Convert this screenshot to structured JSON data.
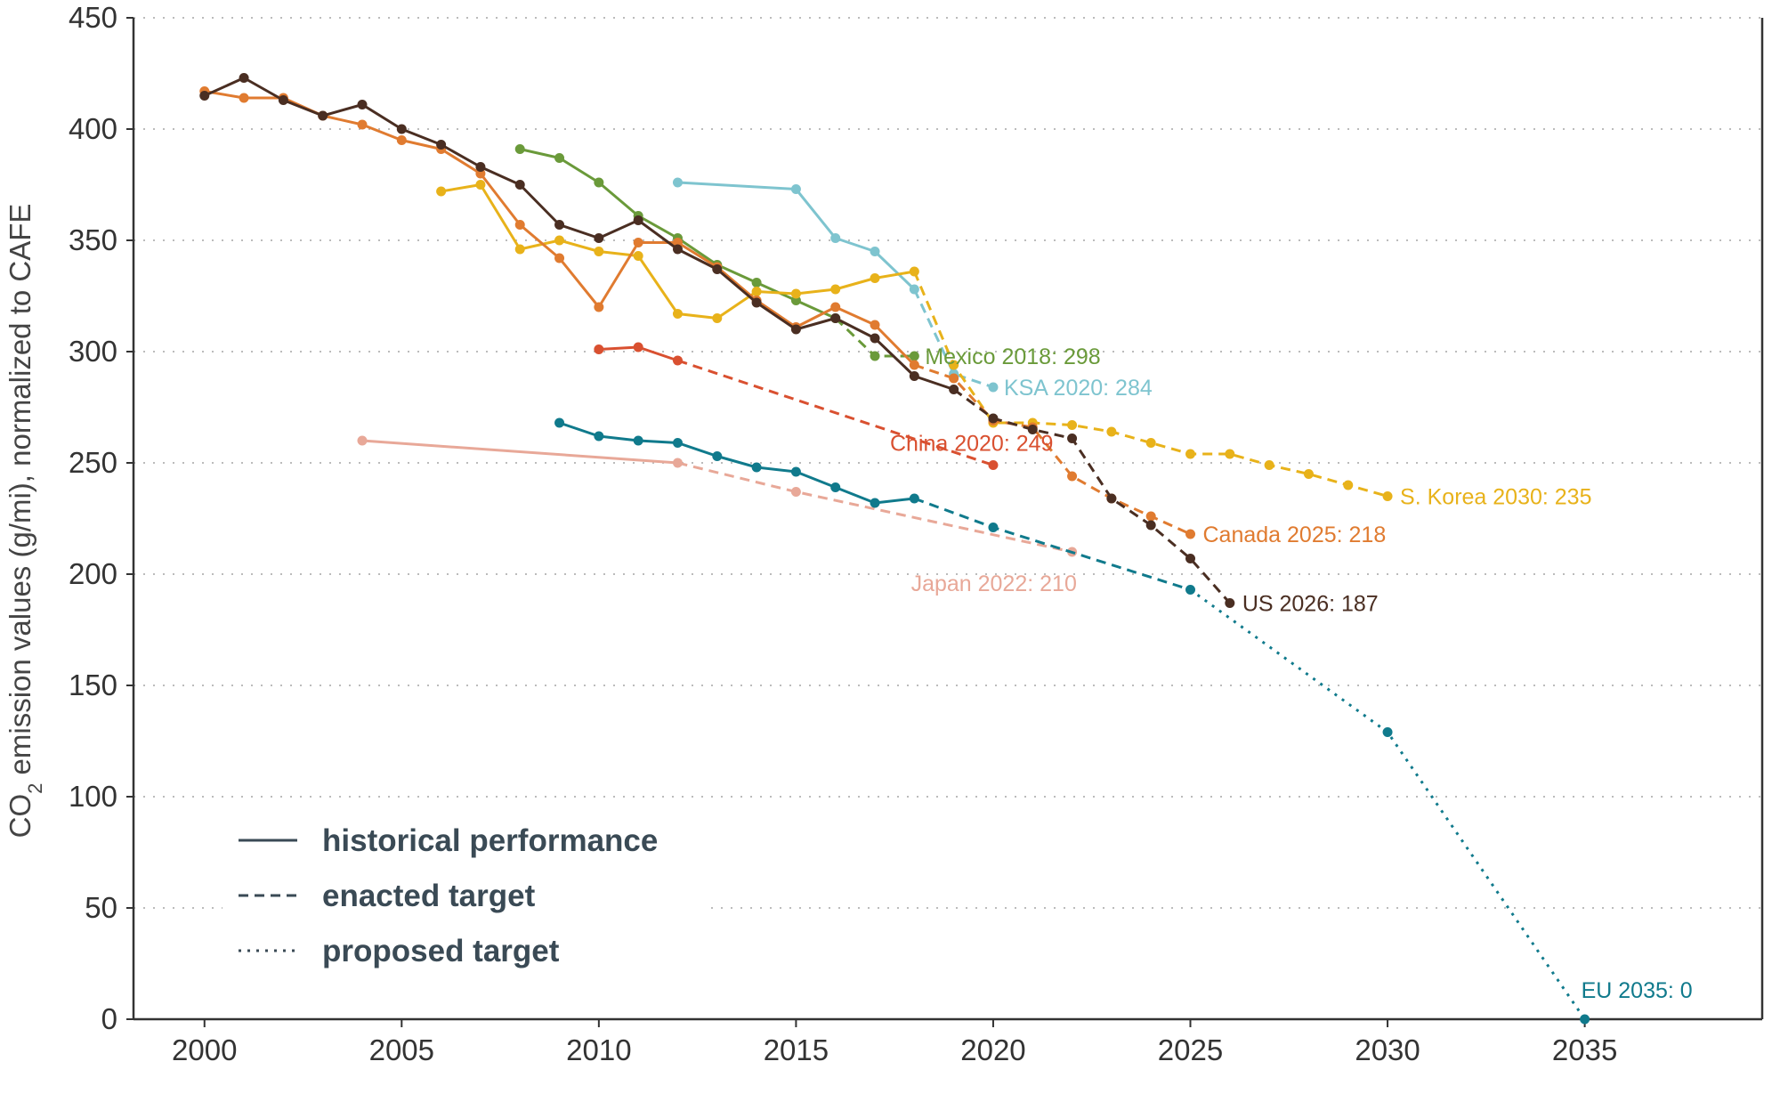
{
  "chart_data": {
    "type": "line",
    "ylabel_main": "CO",
    "ylabel_sub": "2",
    "ylabel_rest": " emission values (g/mi), normalized to CAFE",
    "xlim": [
      1998.2,
      2039.5
    ],
    "ylim": [
      0,
      450
    ],
    "x_ticks": [
      "2000",
      "2005",
      "2010",
      "2015",
      "2020",
      "2025",
      "2030",
      "2035"
    ],
    "y_ticks": [
      "0",
      "50",
      "100",
      "150",
      "200",
      "250",
      "300",
      "350",
      "400",
      "450"
    ],
    "grid": "horizontal dotted",
    "legend": {
      "placement": "bottom-left",
      "entries": [
        {
          "style": "solid",
          "label": "historical performance"
        },
        {
          "style": "dashed",
          "label": "enacted target"
        },
        {
          "style": "dotted",
          "label": "proposed target"
        }
      ]
    },
    "series": [
      {
        "name": "Mexico",
        "color": "#6a9a3a",
        "historical": [
          [
            2008,
            391
          ],
          [
            2009,
            387
          ],
          [
            2010,
            376
          ],
          [
            2011,
            361
          ],
          [
            2012,
            351
          ],
          [
            2013,
            339
          ],
          [
            2014,
            331
          ],
          [
            2015,
            323
          ],
          [
            2016,
            315
          ]
        ],
        "enacted": [
          [
            2016,
            315
          ],
          [
            2017,
            298
          ],
          [
            2018,
            298
          ]
        ],
        "proposed": [],
        "label": "Mexico 2018: 298"
      },
      {
        "name": "KSA",
        "color": "#7ec4cf",
        "historical": [
          [
            2012,
            376
          ],
          [
            2015,
            373
          ],
          [
            2016,
            351
          ],
          [
            2017,
            345
          ],
          [
            2018,
            328
          ]
        ],
        "enacted": [
          [
            2018,
            328
          ],
          [
            2019,
            290
          ],
          [
            2020,
            284
          ]
        ],
        "proposed": [],
        "label": "KSA 2020: 284"
      },
      {
        "name": "S. Korea",
        "color": "#e8b21a",
        "historical": [
          [
            2006,
            372
          ],
          [
            2007,
            375
          ],
          [
            2008,
            346
          ],
          [
            2009,
            350
          ],
          [
            2010,
            345
          ],
          [
            2011,
            343
          ],
          [
            2012,
            317
          ],
          [
            2013,
            315
          ],
          [
            2014,
            327
          ],
          [
            2015,
            326
          ],
          [
            2016,
            328
          ],
          [
            2017,
            333
          ],
          [
            2018,
            336
          ]
        ],
        "enacted": [
          [
            2018,
            336
          ],
          [
            2019,
            294
          ],
          [
            2020,
            268
          ],
          [
            2021,
            268
          ],
          [
            2022,
            267
          ],
          [
            2023,
            264
          ],
          [
            2024,
            259
          ],
          [
            2025,
            254
          ],
          [
            2026,
            254
          ],
          [
            2027,
            249
          ],
          [
            2028,
            245
          ],
          [
            2029,
            240
          ],
          [
            2030,
            235
          ]
        ],
        "proposed": [],
        "label": "S. Korea 2030: 235"
      },
      {
        "name": "Canada",
        "color": "#e07b30",
        "historical": [
          [
            2000,
            417
          ],
          [
            2001,
            414
          ],
          [
            2002,
            414
          ],
          [
            2003,
            406
          ],
          [
            2004,
            402
          ],
          [
            2005,
            395
          ],
          [
            2006,
            391
          ],
          [
            2007,
            380
          ],
          [
            2008,
            357
          ],
          [
            2009,
            342
          ],
          [
            2010,
            320
          ],
          [
            2011,
            349
          ],
          [
            2012,
            349
          ],
          [
            2013,
            338
          ],
          [
            2014,
            323
          ],
          [
            2015,
            311
          ],
          [
            2016,
            320
          ],
          [
            2017,
            312
          ],
          [
            2018,
            294
          ]
        ],
        "enacted": [
          [
            2018,
            294
          ],
          [
            2019,
            288
          ],
          [
            2020,
            269
          ],
          [
            2021,
            266
          ],
          [
            2022,
            244
          ],
          [
            2023,
            234
          ],
          [
            2024,
            226
          ],
          [
            2025,
            218
          ]
        ],
        "proposed": [],
        "label": "Canada 2025: 218"
      },
      {
        "name": "US",
        "color": "#4a2e22",
        "historical": [
          [
            2000,
            415
          ],
          [
            2001,
            423
          ],
          [
            2002,
            413
          ],
          [
            2003,
            406
          ],
          [
            2004,
            411
          ],
          [
            2005,
            400
          ],
          [
            2006,
            393
          ],
          [
            2007,
            383
          ],
          [
            2008,
            375
          ],
          [
            2009,
            357
          ],
          [
            2010,
            351
          ],
          [
            2011,
            359
          ],
          [
            2012,
            346
          ],
          [
            2013,
            337
          ],
          [
            2014,
            322
          ],
          [
            2015,
            310
          ],
          [
            2016,
            315
          ],
          [
            2017,
            306
          ],
          [
            2018,
            289
          ],
          [
            2019,
            283
          ]
        ],
        "enacted": [
          [
            2019,
            283
          ],
          [
            2020,
            270
          ],
          [
            2021,
            265
          ],
          [
            2022,
            261
          ],
          [
            2023,
            234
          ],
          [
            2024,
            222
          ],
          [
            2025,
            207
          ],
          [
            2026,
            187
          ]
        ],
        "proposed": [],
        "label": "US 2026: 187"
      },
      {
        "name": "China",
        "color": "#d95030",
        "historical": [
          [
            2010,
            301
          ],
          [
            2011,
            302
          ],
          [
            2012,
            296
          ]
        ],
        "enacted": [
          [
            2012,
            296
          ],
          [
            2020,
            249
          ]
        ],
        "proposed": [],
        "label": "China 2020: 249"
      },
      {
        "name": "Japan",
        "color": "#e8a898",
        "historical": [
          [
            2004,
            260
          ],
          [
            2012,
            250
          ]
        ],
        "enacted": [
          [
            2012,
            250
          ],
          [
            2015,
            237
          ],
          [
            2022,
            210
          ]
        ],
        "proposed": [],
        "label": "Japan 2022: 210"
      },
      {
        "name": "EU",
        "color": "#107a8c",
        "historical": [
          [
            2009,
            268
          ],
          [
            2010,
            262
          ],
          [
            2011,
            260
          ],
          [
            2012,
            259
          ],
          [
            2013,
            253
          ],
          [
            2014,
            248
          ],
          [
            2015,
            246
          ],
          [
            2016,
            239
          ],
          [
            2017,
            232
          ],
          [
            2018,
            234
          ]
        ],
        "enacted": [
          [
            2018,
            234
          ],
          [
            2020,
            221
          ],
          [
            2025,
            193
          ]
        ],
        "proposed": [
          [
            2025,
            193
          ],
          [
            2030,
            129
          ],
          [
            2035,
            0
          ]
        ],
        "label": "EU 2035: 0"
      }
    ]
  }
}
